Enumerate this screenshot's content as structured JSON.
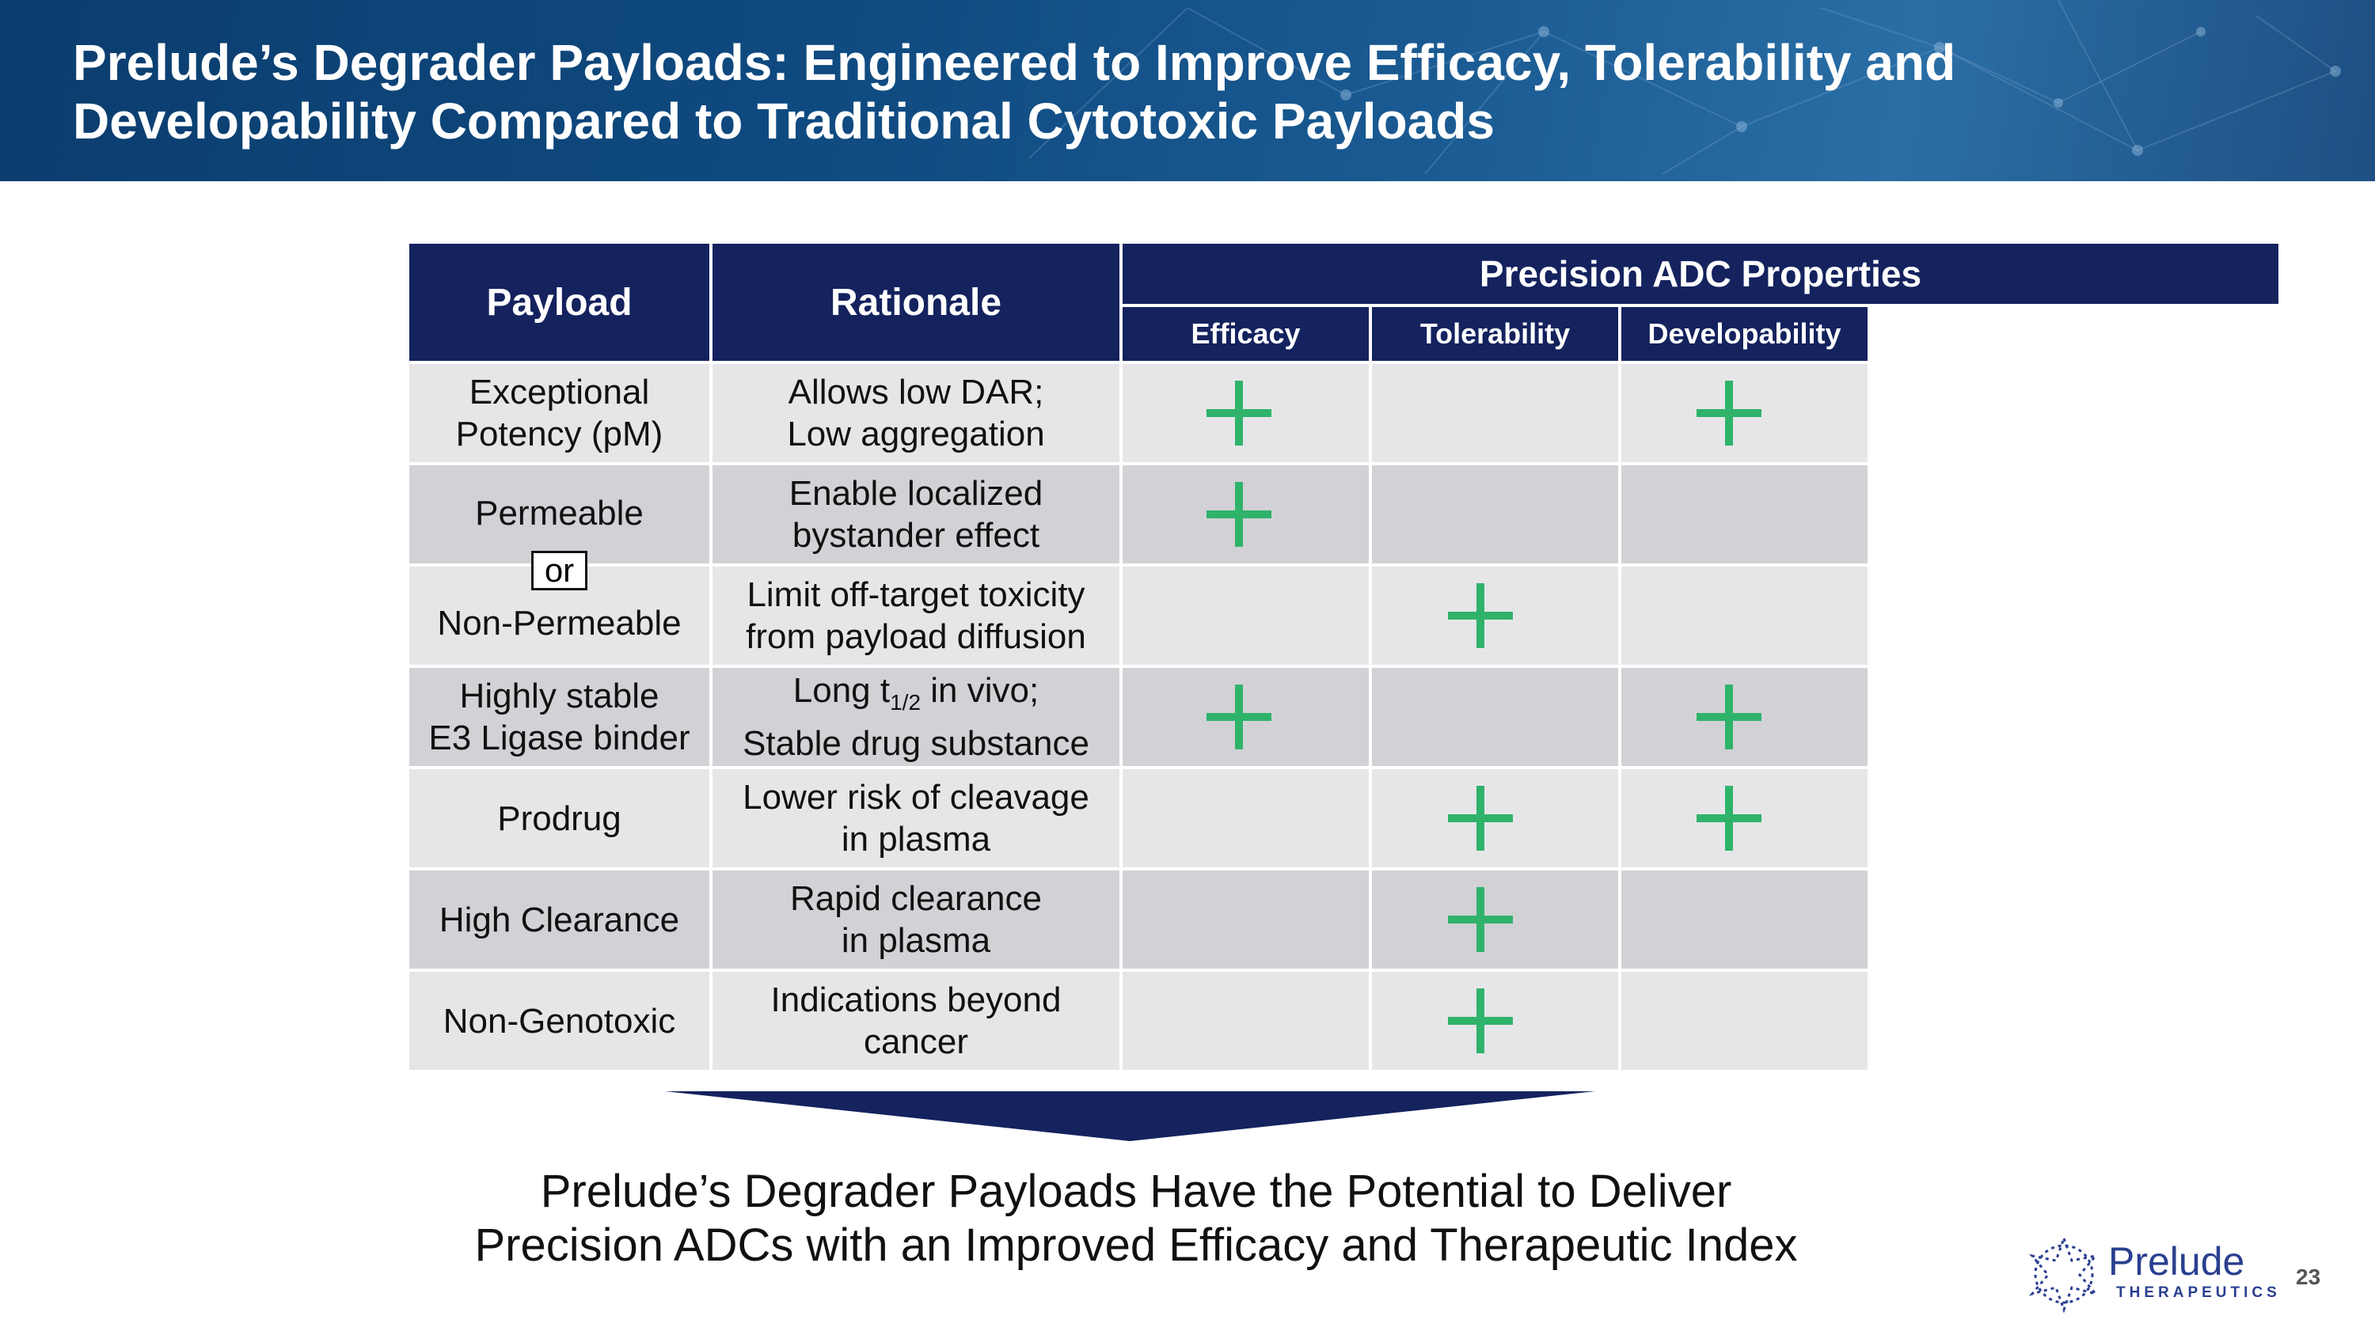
{
  "header": {
    "title_line1": "Prelude’s Degrader Payloads: Engineered to Improve Efficacy, Tolerability and",
    "title_line2": "Developability Compared to Traditional Cytotoxic Payloads"
  },
  "table": {
    "col_payload": "Payload",
    "col_rationale": "Rationale",
    "group_header": "Precision ADC Properties",
    "col_efficacy": "Efficacy",
    "col_tolerability": "Tolerability",
    "col_developability": "Developability",
    "rows": [
      {
        "payload_line1": "Exceptional",
        "payload_line2": "Potency (pM)",
        "rationale_line1": "Allows low DAR;",
        "rationale_line2": "Low aggregation",
        "efficacy": true,
        "tolerability": false,
        "developability": true
      },
      {
        "payload_line1": "Permeable",
        "rationale_line1": "Enable localized",
        "rationale_line2": "bystander effect",
        "efficacy": true,
        "tolerability": false,
        "developability": false
      },
      {
        "payload_line1": "Non-Permeable",
        "rationale_line1": "Limit off-target toxicity",
        "rationale_line2": "from payload diffusion",
        "efficacy": false,
        "tolerability": true,
        "developability": false
      },
      {
        "payload_line1": "Highly stable",
        "payload_line2": "E3 Ligase binder",
        "rationale_line1a": "Long t",
        "rationale_sub": "1/2",
        "rationale_line1b": " in vivo;",
        "rationale_line2": "Stable drug substance",
        "efficacy": true,
        "tolerability": false,
        "developability": true
      },
      {
        "payload_line1": "Prodrug",
        "rationale_line1": "Lower risk of cleavage",
        "rationale_line2": "in plasma",
        "efficacy": false,
        "tolerability": true,
        "developability": true
      },
      {
        "payload_line1": "High Clearance",
        "rationale_line1": "Rapid clearance",
        "rationale_line2": "in plasma",
        "efficacy": false,
        "tolerability": true,
        "developability": false
      },
      {
        "payload_line1": "Non-Genotoxic",
        "rationale_line1": "Indications beyond",
        "rationale_line2": "cancer",
        "efficacy": false,
        "tolerability": true,
        "developability": false
      }
    ],
    "or_label": "or"
  },
  "conclusion": {
    "line1": "Prelude’s Degrader Payloads Have the Potential to Deliver",
    "line2": "Precision ADCs with an Improved Efficacy and Therapeutic Index"
  },
  "logo": {
    "name": "Prelude",
    "sub": "THERAPEUTICS"
  },
  "page_number": "23",
  "colors": {
    "header_navy": "#14225e",
    "plus_green": "#2fb36b",
    "banner_blue": "#0f4a80"
  }
}
